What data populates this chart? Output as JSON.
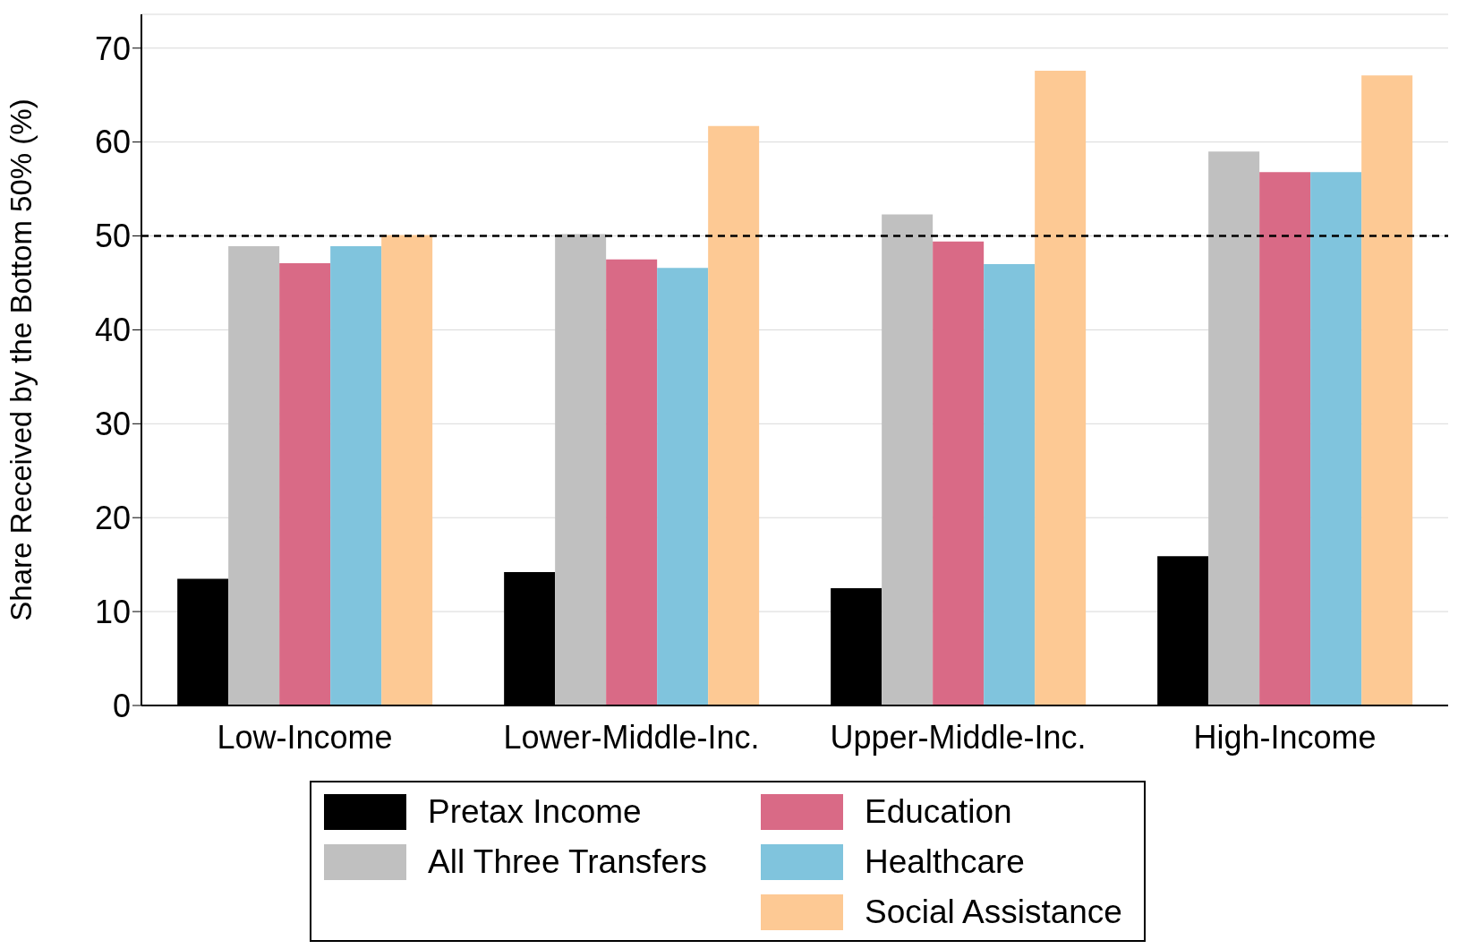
{
  "chart_data": {
    "type": "bar",
    "ylabel": "Share Received by the Bottom 50% (%)",
    "categories": [
      "Low-Income",
      "Lower-Middle-Inc.",
      "Upper-Middle-Inc.",
      "High-Income"
    ],
    "series": [
      {
        "name": "Pretax Income",
        "color": "#000000",
        "values": [
          13.5,
          14.2,
          12.5,
          15.9
        ]
      },
      {
        "name": "All Three Transfers",
        "color": "#c0c0c0",
        "values": [
          48.9,
          50.2,
          52.3,
          59.0
        ]
      },
      {
        "name": "Education",
        "color": "#d96a86",
        "values": [
          47.1,
          47.5,
          49.4,
          56.8
        ]
      },
      {
        "name": "Healthcare",
        "color": "#80c4dd",
        "values": [
          48.9,
          46.6,
          47.0,
          56.8
        ]
      },
      {
        "name": "Social Assistance",
        "color": "#fdc994",
        "values": [
          50.1,
          61.7,
          67.6,
          67.1
        ]
      }
    ],
    "ylim": [
      0,
      73.6
    ],
    "yticks": [
      0,
      10,
      20,
      30,
      40,
      50,
      60,
      70
    ],
    "grid": "y",
    "ref_lines": [
      {
        "axis": "y",
        "value": 50,
        "color": "#000000",
        "line_style": "dashed"
      }
    ],
    "legend": "bottom"
  }
}
